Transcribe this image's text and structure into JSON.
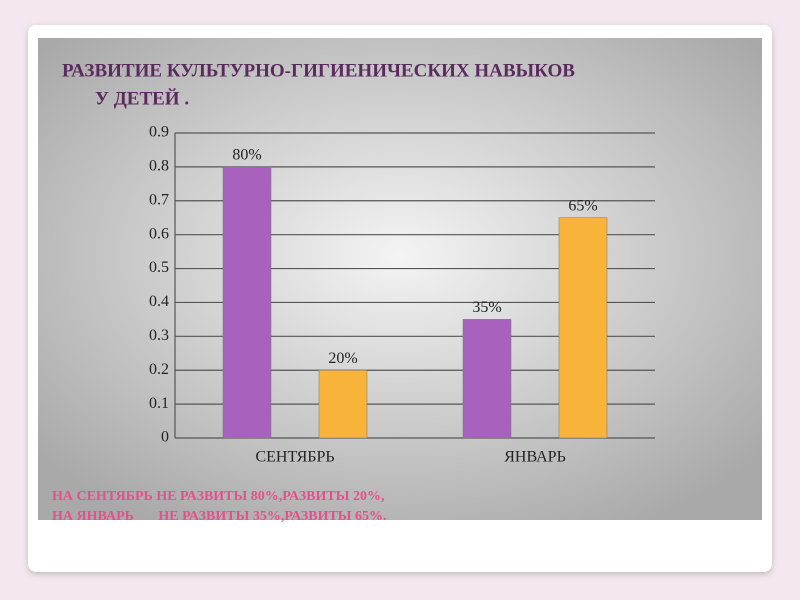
{
  "slide": {
    "title": [
      "РАЗВИТИЕ КУЛЬТУРНО-ГИГИЕНИЧЕСКИХ НАВЫКОВ",
      "У ДЕТЕЙ ."
    ],
    "notes": [
      "НА СЕНТЯБРЬ НЕ РАЗВИТЫ 80%,РАЗВИТЫ 20%,",
      "НА ЯНВАРЬ       НЕ РАЗВИТЫ 35%,РАЗВИТЫ 65%."
    ]
  },
  "chart_data": {
    "type": "bar",
    "categories": [
      "СЕНТЯБРЬ",
      "ЯНВАРЬ"
    ],
    "series": [
      {
        "color": "#a862bd",
        "values": [
          0.8,
          0.35
        ],
        "value_labels": [
          "80%",
          "35%"
        ]
      },
      {
        "color": "#f8b43a",
        "values": [
          0.2,
          0.65
        ],
        "value_labels": [
          "20%",
          "65%"
        ]
      }
    ],
    "ylim": [
      0,
      0.9
    ],
    "yticks": [
      0,
      0.1,
      0.2,
      0.3,
      0.4,
      0.5,
      0.6,
      0.7,
      0.8,
      0.9
    ],
    "grid": true
  }
}
